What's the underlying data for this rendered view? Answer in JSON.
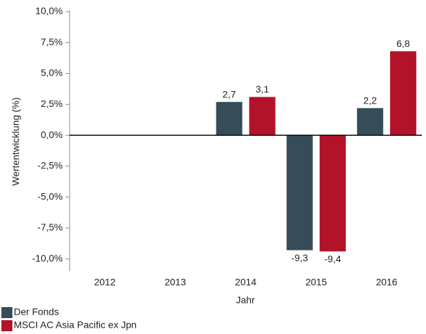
{
  "chart_data": {
    "type": "bar",
    "y_label": "Wertentwicklung (%)",
    "x_label": "Jahr",
    "categories": [
      "2012",
      "2013",
      "2014",
      "2015",
      "2016"
    ],
    "series": [
      {
        "name": "Der Fonds",
        "color": "#364d59",
        "values": [
          null,
          null,
          2.7,
          -9.3,
          2.2
        ],
        "value_labels": [
          null,
          null,
          "2,7",
          "-9,3",
          "2,2"
        ]
      },
      {
        "name": "MSCI AC Asia Pacific ex Jpn",
        "color": "#b31329",
        "values": [
          null,
          null,
          3.1,
          -9.4,
          6.8
        ],
        "value_labels": [
          null,
          null,
          "3,1",
          "-9,4",
          "6,8"
        ]
      }
    ],
    "ylim": [
      -11,
      10
    ],
    "yticks": [
      {
        "value": 10,
        "label": "10,0%"
      },
      {
        "value": 7.5,
        "label": "7,5%"
      },
      {
        "value": 5,
        "label": "5,0%"
      },
      {
        "value": 2.5,
        "label": "2,5%"
      },
      {
        "value": 0,
        "label": "0,0%"
      },
      {
        "value": -2.5,
        "label": "-2,5%"
      },
      {
        "value": -5,
        "label": "-5,0%"
      },
      {
        "value": -7.5,
        "label": "-7,5%"
      },
      {
        "value": -10,
        "label": "-10,0%"
      }
    ],
    "grid": false,
    "legend": "bottom-left"
  }
}
